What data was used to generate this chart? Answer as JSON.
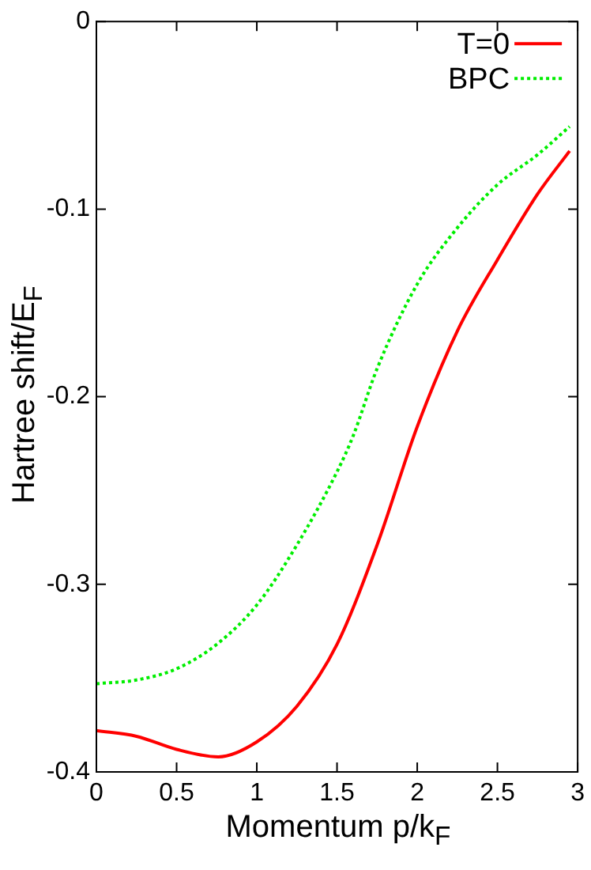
{
  "chart_data": {
    "type": "line",
    "xlabel": "Momentum p/k$_{F}$",
    "ylabel": "Hartree shift/E$_{F}$",
    "xlim": [
      0,
      3
    ],
    "xticks": [
      0,
      0.5,
      1,
      1.5,
      2,
      2.5,
      3
    ],
    "ylim": [
      -0.4,
      0
    ],
    "yticks": [
      -0.4,
      -0.3,
      -0.2,
      -0.1,
      0
    ],
    "grid": false,
    "legend": "top right",
    "marker": "none",
    "series": [
      {
        "name": "T=0",
        "color": "#ff0000",
        "line_style": "solid",
        "x": [
          0,
          0.25,
          0.5,
          0.76,
          1,
          1.25,
          1.5,
          1.75,
          2,
          2.25,
          2.5,
          2.75,
          2.95
        ],
        "values": [
          -0.378,
          -0.381,
          -0.388,
          -0.392,
          -0.384,
          -0.365,
          -0.332,
          -0.279,
          -0.216,
          -0.165,
          -0.127,
          -0.092,
          -0.069
        ]
      },
      {
        "name": "BPC",
        "color": "#00ee00",
        "line_style": "dotted",
        "x": [
          0,
          0.25,
          0.5,
          0.75,
          1,
          1.25,
          1.5,
          1.6,
          1.75,
          2,
          2.25,
          2.5,
          2.75,
          2.95
        ],
        "values": [
          -0.353,
          -0.351,
          -0.345,
          -0.332,
          -0.311,
          -0.279,
          -0.24,
          -0.221,
          -0.185,
          -0.14,
          -0.11,
          -0.087,
          -0.071,
          -0.056
        ]
      }
    ]
  }
}
